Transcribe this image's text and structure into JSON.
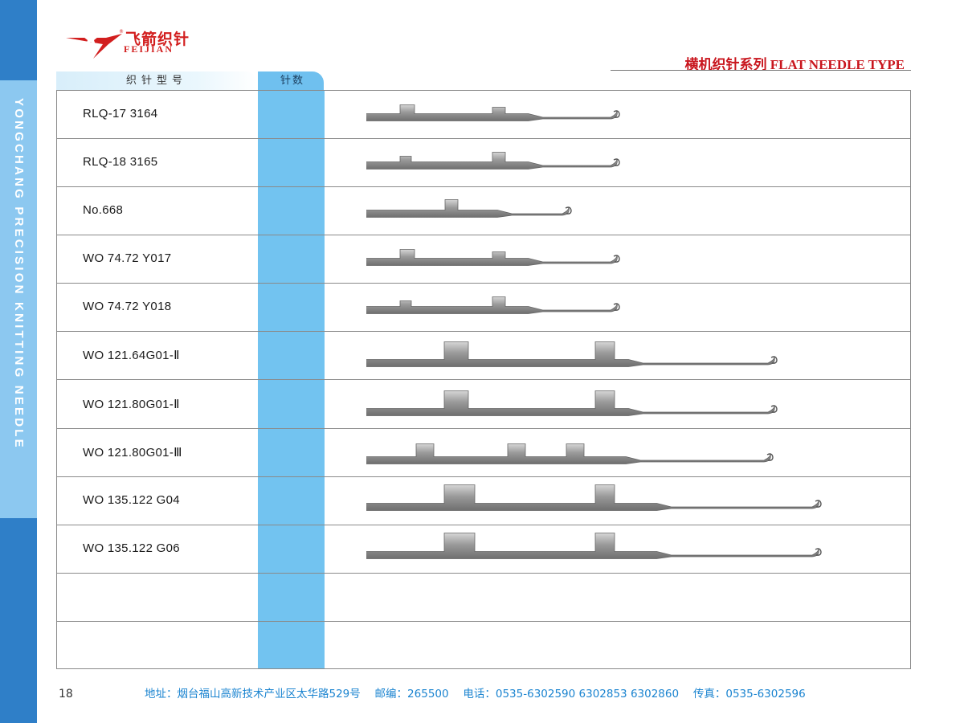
{
  "sidebar": {
    "vertical_text": "YONGCHANG PRECISION KNITTING NEEDLE"
  },
  "brand": {
    "name_cn": "飞箭织针",
    "name_en": "FEIJIAN"
  },
  "header": {
    "series_title": "横机织针系列 FLAT NEEDLE TYPE"
  },
  "table": {
    "headers": [
      "织针型号",
      "针数"
    ],
    "rows": [
      {
        "model": "RLQ-17 3164",
        "needle_count": "",
        "needle_shape": "small-double-butt"
      },
      {
        "model": "RLQ-18 3165",
        "needle_count": "",
        "needle_shape": "small-double-butt-alt"
      },
      {
        "model": "No.668",
        "needle_count": "",
        "needle_shape": "small-single-butt"
      },
      {
        "model": "WO 74.72 Y017",
        "needle_count": "",
        "needle_shape": "small-double-butt"
      },
      {
        "model": "WO 74.72 Y018",
        "needle_count": "",
        "needle_shape": "small-double-butt-alt"
      },
      {
        "model": "WO 121.64G01-Ⅱ",
        "needle_count": "",
        "needle_shape": "large-double-butt"
      },
      {
        "model": "WO 121.80G01-Ⅱ",
        "needle_count": "",
        "needle_shape": "large-double-butt"
      },
      {
        "model": "WO 121.80G01-Ⅲ",
        "needle_count": "",
        "needle_shape": "large-triple-butt"
      },
      {
        "model": "WO 135.122 G04",
        "needle_count": "",
        "needle_shape": "xlarge-double-butt"
      },
      {
        "model": "WO 135.122 G06",
        "needle_count": "",
        "needle_shape": "xlarge-double-butt"
      },
      {
        "model": "",
        "needle_count": "",
        "needle_shape": ""
      },
      {
        "model": "",
        "needle_count": "",
        "needle_shape": ""
      }
    ]
  },
  "footer": {
    "contact": "地址：烟台福山高新技术产业区太华路529号　 邮编：265500　 电话：0535-6302590 6302853 6302860　 传真：0535-6302596"
  },
  "page_number": "18",
  "colors": {
    "brand_red": "#c9161e",
    "sidebar_blue": "#2f7fc8",
    "count_column_blue": "#72c3f0",
    "footer_blue": "#1b84d0"
  }
}
